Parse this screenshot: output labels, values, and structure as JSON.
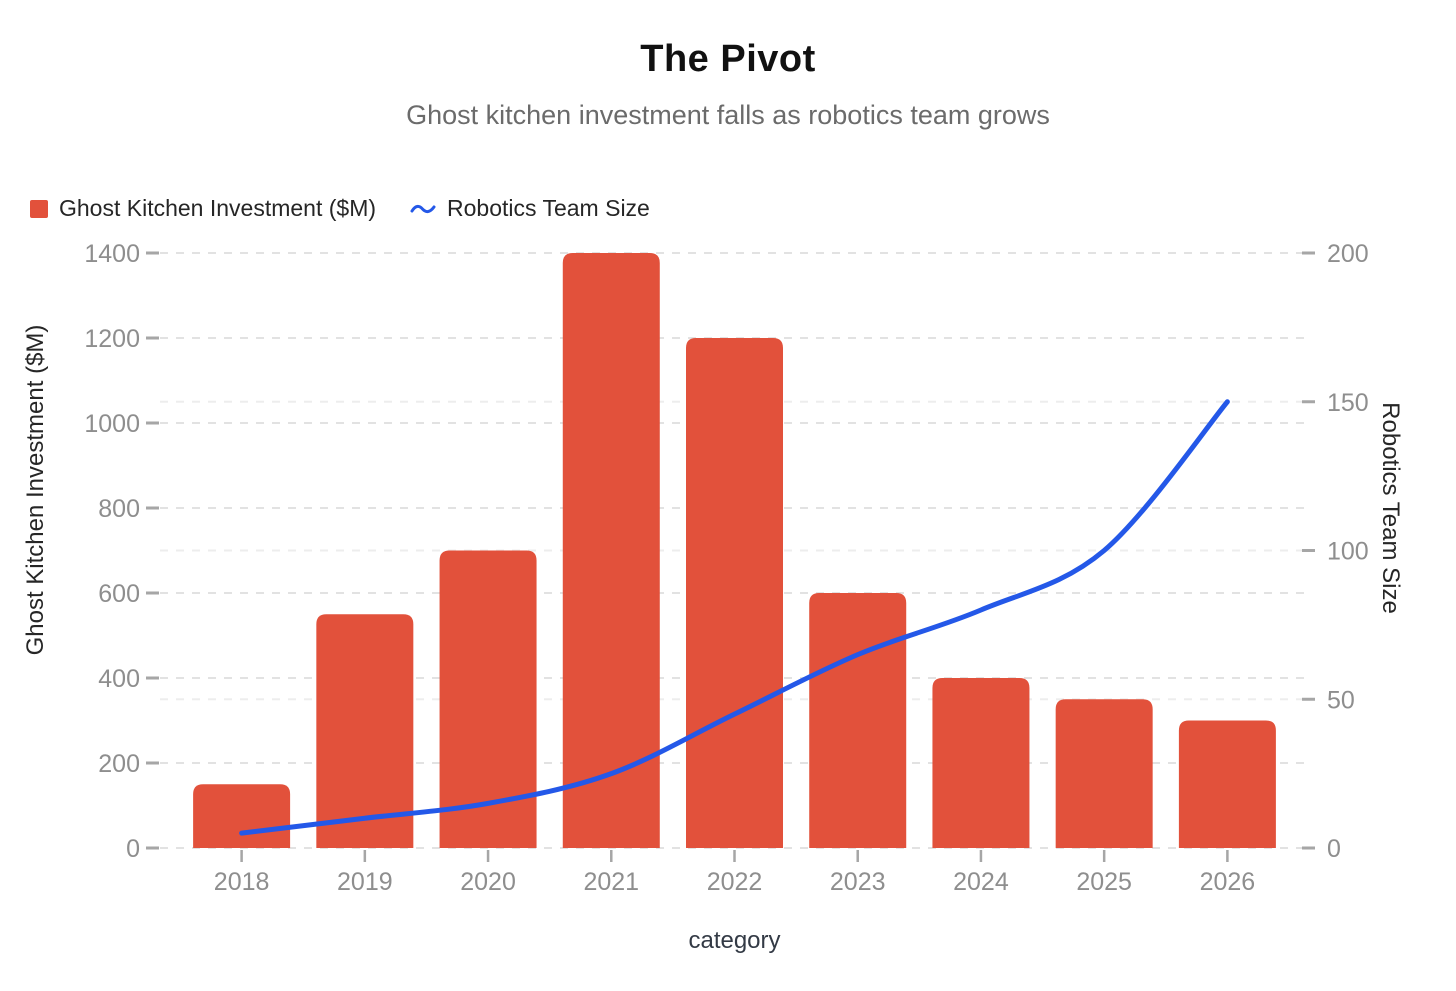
{
  "title": "The Pivot",
  "subtitle": "Ghost kitchen investment falls as robotics team grows",
  "legend": {
    "items": [
      {
        "label": "Ghost Kitchen Investment ($M)",
        "swatch": "bar-square"
      },
      {
        "label": "Robotics Team Size",
        "swatch": "line-squiggle"
      }
    ]
  },
  "chart_data": {
    "type": "bar+line (dual axis combo)",
    "categories": [
      "2018",
      "2019",
      "2020",
      "2021",
      "2022",
      "2023",
      "2024",
      "2025",
      "2026"
    ],
    "series": [
      {
        "name": "Ghost Kitchen Investment ($M)",
        "type": "bar",
        "yaxis": "left",
        "color": "#e2513b",
        "values": [
          150,
          550,
          700,
          1400,
          1200,
          600,
          400,
          350,
          300
        ]
      },
      {
        "name": "Robotics Team Size",
        "type": "line",
        "yaxis": "right",
        "color": "#2458e8",
        "values": [
          5,
          10,
          15,
          25,
          45,
          65,
          80,
          100,
          150
        ]
      }
    ],
    "title": "The Pivot",
    "subtitle": "Ghost kitchen investment falls as robotics team grows",
    "xlabel": "category",
    "left_axis": {
      "label": "Ghost Kitchen Investment ($M)",
      "range": [
        0,
        1400
      ],
      "ticks": [
        0,
        200,
        400,
        600,
        800,
        1000,
        1200,
        1400
      ]
    },
    "right_axis": {
      "label": "Robotics Team Size",
      "range": [
        0,
        200
      ],
      "ticks": [
        0,
        50,
        100,
        150,
        200
      ]
    },
    "grid": "dashed horizontal gridlines for both axes",
    "legend_position": "top-left"
  },
  "colors": {
    "bar": "#e2513b",
    "line": "#2458e8",
    "grid_left": "#e2e2e2",
    "grid_right": "#ededed",
    "tick_mark": "#a6a6a6",
    "tick_label": "#8e8e8e",
    "axis_title": "#262626",
    "title": "#111111",
    "subtitle": "#6b6b6b",
    "background": "#ffffff"
  }
}
